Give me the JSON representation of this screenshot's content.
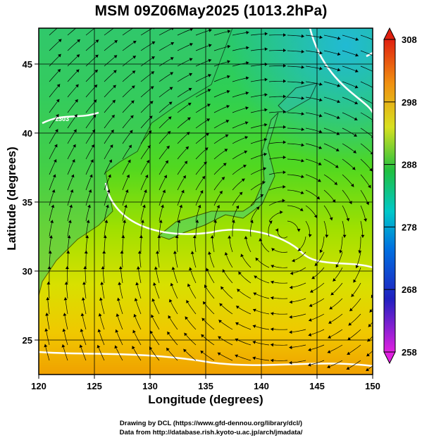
{
  "chart_data": {
    "type": "heatmap",
    "title": "MSM 09Z06May2025 (1013.2hPa)",
    "xlabel": "Longitude (degrees)",
    "ylabel": "Latitude  (degrees)",
    "xlim": [
      120,
      150
    ],
    "ylim": [
      22.5,
      47.6
    ],
    "x_ticks": [
      120,
      125,
      130,
      135,
      140,
      145,
      150
    ],
    "y_ticks": [
      25,
      30,
      35,
      40,
      45
    ],
    "grid": true,
    "colorbar": {
      "min": 258,
      "max": 308,
      "ticks": [
        258,
        268,
        278,
        288,
        298,
        308
      ],
      "colors": [
        "#e020e0",
        "#0020c0",
        "#00c0e0",
        "#20c040",
        "#e0e020",
        "#f08010",
        "#e02010"
      ]
    },
    "contour_value_label": "1303"
  },
  "credits": {
    "line1": "Drawing by DCL (https://www.gfd-dennou.org/library/dcl/)",
    "line2": "Data from http://database.rish.kyoto-u.ac.jp/arch/jmadata/"
  }
}
